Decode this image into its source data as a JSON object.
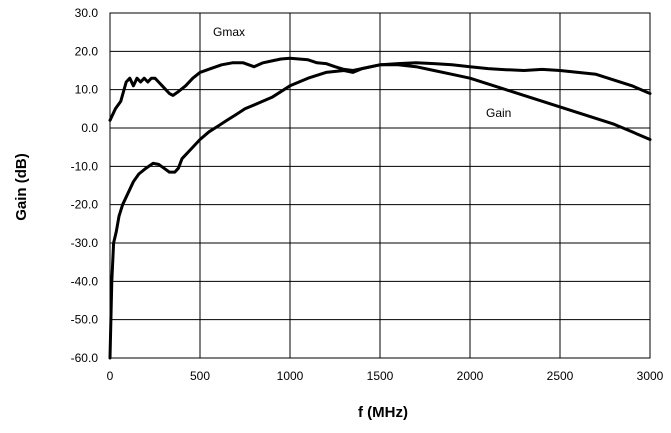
{
  "chart_data": {
    "type": "line",
    "title": "",
    "xlabel": "f (MHz)",
    "ylabel": "Gain (dB)",
    "xlim": [
      0,
      3000
    ],
    "ylim": [
      -60,
      30
    ],
    "x_ticks": [
      "0",
      "500",
      "1000",
      "1500",
      "2000",
      "2500",
      "3000"
    ],
    "y_ticks": [
      "-60.0",
      "-50.0",
      "-40.0",
      "-30.0",
      "-20.0",
      "-10.0",
      "0.0",
      "10.0",
      "20.0",
      "30.0"
    ],
    "grid": true,
    "series": [
      {
        "name": "Gmax",
        "color": "#000000",
        "x": [
          0,
          30,
          60,
          90,
          110,
          130,
          150,
          170,
          190,
          210,
          230,
          250,
          270,
          290,
          310,
          330,
          350,
          380,
          420,
          460,
          500,
          560,
          620,
          680,
          740,
          800,
          850,
          900,
          950,
          1000,
          1050,
          1100,
          1150,
          1200,
          1250,
          1300,
          1350,
          1400,
          1450,
          1500,
          1600,
          1700,
          1800,
          1900,
          2000,
          2100,
          2200,
          2300,
          2400,
          2500,
          2600,
          2700,
          2800,
          2900,
          3000
        ],
        "y": [
          2,
          5,
          7,
          12,
          13,
          11,
          13,
          12,
          13,
          12,
          13,
          13,
          12,
          11,
          10,
          9,
          8.5,
          9.5,
          11,
          13,
          14.5,
          15.5,
          16.5,
          17,
          17,
          16,
          17,
          17.5,
          18,
          18.2,
          18,
          17.8,
          17,
          16.8,
          16,
          15.3,
          15,
          15.5,
          16,
          16.5,
          16.8,
          17,
          16.8,
          16.5,
          16,
          15.5,
          15.2,
          15,
          15.3,
          15,
          14.5,
          14,
          12.5,
          11,
          9
        ]
      },
      {
        "name": "Gain",
        "color": "#000000",
        "x": [
          0,
          5,
          10,
          20,
          35,
          50,
          70,
          100,
          130,
          160,
          200,
          240,
          270,
          300,
          330,
          360,
          380,
          400,
          450,
          500,
          550,
          600,
          650,
          700,
          750,
          800,
          900,
          1000,
          1100,
          1200,
          1300,
          1350,
          1400,
          1500,
          1600,
          1700,
          1800,
          1900,
          2000,
          2100,
          2200,
          2300,
          2400,
          2500,
          2600,
          2700,
          2800,
          2900,
          3000
        ],
        "y": [
          -60,
          -50,
          -40,
          -30,
          -27,
          -23,
          -20,
          -17,
          -14,
          -12,
          -10.5,
          -9.2,
          -9.5,
          -10.5,
          -11.5,
          -11.5,
          -10.5,
          -8,
          -5.5,
          -3,
          -1,
          0.5,
          2,
          3.5,
          5,
          6,
          8,
          11,
          13,
          14.5,
          15,
          14.5,
          15.5,
          16.5,
          16.5,
          16,
          15,
          14,
          13,
          11.5,
          10,
          8.5,
          7,
          5.5,
          4,
          2.5,
          1,
          -1,
          -3
        ]
      }
    ],
    "annotations": [
      "Gmax",
      "Gain"
    ]
  }
}
